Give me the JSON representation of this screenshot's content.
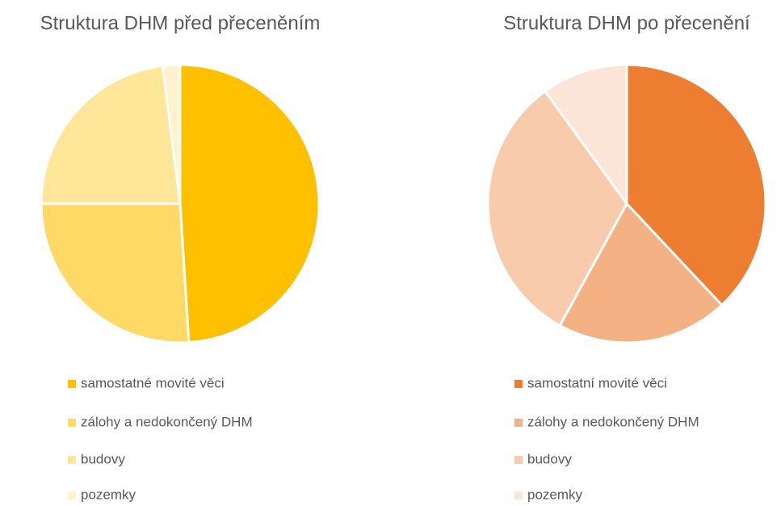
{
  "chart_data": [
    {
      "type": "pie",
      "title": "Struktura DHM před přeceněním",
      "categories": [
        "samostatné movité věci",
        "zálohy a nedokončený DHM",
        "budovy",
        "pozemky"
      ],
      "values": [
        49,
        26,
        23,
        2
      ],
      "colors": [
        "#ffc000",
        "#ffd966",
        "#ffe699",
        "#fff2cc"
      ]
    },
    {
      "type": "pie",
      "title": "Struktura DHM po přecenění",
      "categories": [
        "samostatní movité věci",
        "zálohy a nedokončený DHM",
        "budovy",
        "pozemky"
      ],
      "values": [
        38,
        20,
        32,
        10
      ],
      "colors": [
        "#ed7d31",
        "#f4b183",
        "#f8cbad",
        "#fbe5d6"
      ]
    }
  ]
}
